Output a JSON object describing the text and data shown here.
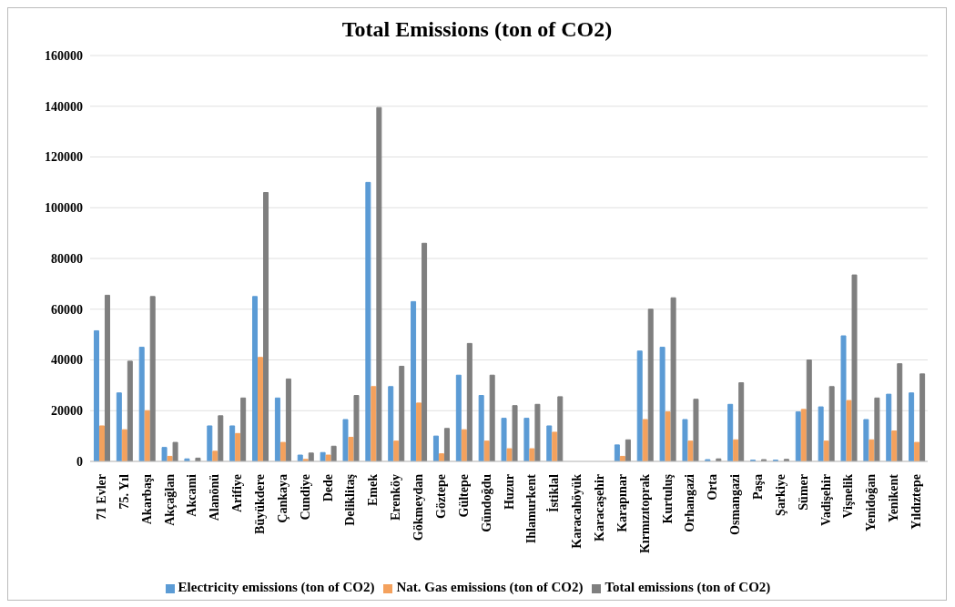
{
  "chart_data": {
    "type": "bar",
    "title": "Total Emissions (ton of CO2)",
    "categories": [
      "71 Evler",
      "75. Yıl",
      "Akarbaşı",
      "Akçağlan",
      "Akcami",
      "Alanönü",
      "Arifiye",
      "Büyükdere",
      "Çankaya",
      "Cundiye",
      "Dede",
      "Deliklitaş",
      "Emek",
      "Erenköy",
      "Gökmeydan",
      "Göztepe",
      "Gültepe",
      "Gündoğdu",
      "Huzur",
      "Ihlamurkent",
      "İstiklal",
      "Karacahöyük",
      "Karacaşehir",
      "Karapınar",
      "Kırmızıtoprak",
      "Kurtuluş",
      "Orhangazi",
      "Orta",
      "Osmangazi",
      "Paşa",
      "Şarkiye",
      "Sümer",
      "Vadişehir",
      "Vişnelik",
      "Yenidoğan",
      "Yenikent",
      "Yıldıztepe"
    ],
    "series": [
      {
        "name": "Electricity emissions (ton of CO2)",
        "color": "#5b9bd5",
        "values": [
          51500,
          27000,
          45000,
          5500,
          1000,
          14000,
          14000,
          65000,
          25000,
          2500,
          3500,
          16500,
          110000,
          29500,
          63000,
          10000,
          34000,
          26000,
          17000,
          17000,
          14000,
          0,
          0,
          6500,
          43500,
          45000,
          16500,
          700,
          22500,
          500,
          500,
          19500,
          21500,
          49500,
          16500,
          26500,
          27000
        ]
      },
      {
        "name": "Nat. Gas emissions (ton of CO2)",
        "color": "#f4a15d",
        "values": [
          14000,
          12500,
          20000,
          2000,
          null,
          4000,
          11000,
          41000,
          7500,
          800,
          2500,
          9500,
          29500,
          8000,
          23000,
          3000,
          12500,
          8000,
          5000,
          5000,
          11500,
          0,
          0,
          2000,
          16500,
          19500,
          8000,
          null,
          8500,
          null,
          null,
          20500,
          8000,
          24000,
          8500,
          12000,
          7500
        ]
      },
      {
        "name": "Total emissions (ton of CO2)",
        "color": "#7f7f7f",
        "values": [
          65500,
          39500,
          65000,
          7500,
          1300,
          18000,
          25000,
          106000,
          32500,
          3300,
          6000,
          26000,
          139500,
          37500,
          86000,
          13000,
          46500,
          34000,
          22000,
          22500,
          25500,
          0,
          0,
          8500,
          60000,
          64500,
          24500,
          1000,
          31000,
          700,
          800,
          40000,
          29500,
          73500,
          25000,
          38500,
          34500
        ]
      }
    ],
    "ylim": [
      0,
      160000
    ],
    "yticks": [
      0,
      20000,
      40000,
      60000,
      80000,
      100000,
      120000,
      140000,
      160000
    ],
    "grid": "y",
    "legend": "bottom"
  }
}
